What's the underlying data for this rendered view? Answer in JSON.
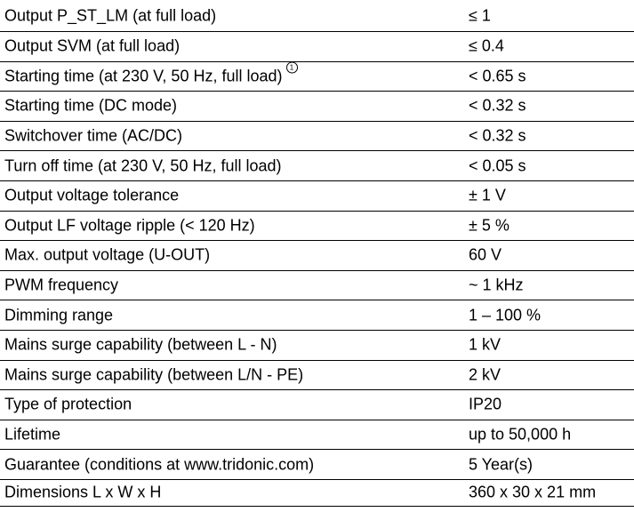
{
  "rows": [
    {
      "label": "Output P_ST_LM (at full load)",
      "value": "≤ 1",
      "footnote": ""
    },
    {
      "label": "Output SVM (at full load)",
      "value": "≤ 0.4",
      "footnote": ""
    },
    {
      "label": "Starting time (at 230 V, 50 Hz, full load)",
      "value": "< 0.65 s",
      "footnote": "1"
    },
    {
      "label": "Starting time (DC mode)",
      "value": "< 0.32 s",
      "footnote": ""
    },
    {
      "label": "Switchover time (AC/DC)",
      "value": "< 0.32 s",
      "footnote": ""
    },
    {
      "label": "Turn off time (at 230 V, 50 Hz, full load)",
      "value": "< 0.05 s",
      "footnote": ""
    },
    {
      "label": "Output voltage tolerance",
      "value": "± 1 V",
      "footnote": ""
    },
    {
      "label": "Output LF voltage ripple (< 120 Hz)",
      "value": "± 5 %",
      "footnote": ""
    },
    {
      "label": "Max. output voltage (U-OUT)",
      "value": "60 V",
      "footnote": ""
    },
    {
      "label": "PWM frequency",
      "value": "~ 1 kHz",
      "footnote": ""
    },
    {
      "label": "Dimming range",
      "value": "1 – 100 %",
      "footnote": ""
    },
    {
      "label": "Mains surge capability (between L - N)",
      "value": "1 kV",
      "footnote": ""
    },
    {
      "label": "Mains surge capability (between L/N - PE)",
      "value": "2 kV",
      "footnote": ""
    },
    {
      "label": "Type of protection",
      "value": "IP20",
      "footnote": ""
    },
    {
      "label": "Lifetime",
      "value": "up to 50,000 h",
      "footnote": ""
    },
    {
      "label": "Guarantee (conditions at www.tridonic.com)",
      "value": "5 Year(s)",
      "footnote": ""
    },
    {
      "label": "Dimensions L x W x H",
      "value": "360 x 30 x 21 mm",
      "footnote": ""
    }
  ]
}
